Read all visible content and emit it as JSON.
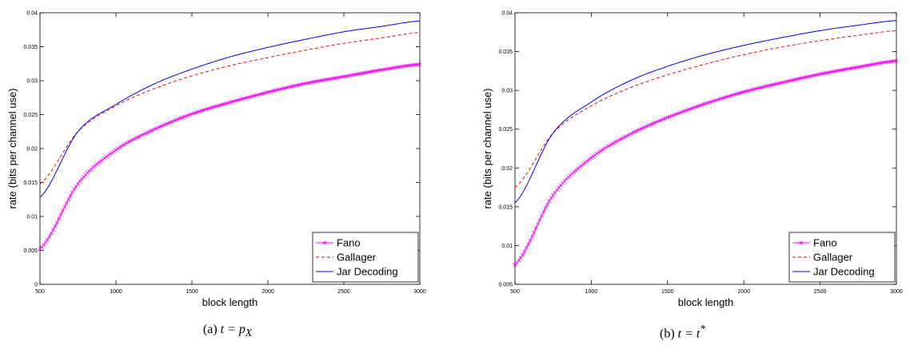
{
  "chart_data": [
    {
      "type": "line",
      "xlabel": "block length",
      "ylabel": "rate (bits per channel use)",
      "xlim": [
        500,
        3000
      ],
      "ylim": [
        0,
        0.04
      ],
      "xticks": [
        "500",
        "1000",
        "1500",
        "2000",
        "2500",
        "3000"
      ],
      "yticks": [
        "0",
        "0.005",
        "0.01",
        "0.015",
        "0.02",
        "0.025",
        "0.03",
        "0.035",
        "0.04"
      ],
      "grid": false,
      "legend_position": "bottom-right",
      "x": [
        500,
        750,
        1000,
        1250,
        1500,
        1750,
        2000,
        2250,
        2500,
        2750,
        3000
      ],
      "series": [
        {
          "name": "Fano",
          "color": "#ff00ff",
          "marker": "x",
          "values": [
            0.0052,
            0.0148,
            0.0198,
            0.0228,
            0.0251,
            0.0268,
            0.0283,
            0.0296,
            0.0306,
            0.0316,
            0.0324
          ]
        },
        {
          "name": "Gallager",
          "color": "#ff0000",
          "dash": "dashed",
          "values": [
            0.0148,
            0.0225,
            0.0263,
            0.0288,
            0.0307,
            0.0322,
            0.0334,
            0.0345,
            0.0355,
            0.0363,
            0.0371
          ]
        },
        {
          "name": "Jar Decoding",
          "color": "#0000ff",
          "dash": "solid",
          "values": [
            0.0128,
            0.0225,
            0.0265,
            0.0295,
            0.0317,
            0.0335,
            0.0349,
            0.0361,
            0.0372,
            0.038,
            0.0388
          ]
        }
      ]
    },
    {
      "type": "line",
      "xlabel": "block length",
      "ylabel": "rate (bits per channel use)",
      "xlim": [
        500,
        3000
      ],
      "ylim": [
        0.005,
        0.04
      ],
      "xticks": [
        "500",
        "1000",
        "1500",
        "2000",
        "2500",
        "3000"
      ],
      "yticks": [
        "0.005",
        "0.01",
        "0.015",
        "0.02",
        "0.025",
        "0.03",
        "0.035",
        "0.04"
      ],
      "grid": false,
      "legend_position": "bottom-right",
      "x": [
        500,
        750,
        1000,
        1250,
        1500,
        1750,
        2000,
        2250,
        2500,
        2750,
        3000
      ],
      "series": [
        {
          "name": "Fano",
          "color": "#ff00ff",
          "marker": "x",
          "values": [
            0.0075,
            0.0165,
            0.0213,
            0.0243,
            0.0265,
            0.0283,
            0.0298,
            0.031,
            0.0321,
            0.033,
            0.0338
          ]
        },
        {
          "name": "Gallager",
          "color": "#ff0000",
          "dash": "dashed",
          "values": [
            0.0175,
            0.0245,
            0.028,
            0.0303,
            0.032,
            0.0334,
            0.0346,
            0.0356,
            0.0364,
            0.0371,
            0.0377
          ]
        },
        {
          "name": "Jar Decoding",
          "color": "#0000ff",
          "dash": "solid",
          "values": [
            0.0155,
            0.0245,
            0.0285,
            0.0312,
            0.0331,
            0.0346,
            0.0358,
            0.0368,
            0.0377,
            0.0384,
            0.039
          ]
        }
      ]
    }
  ],
  "captions": [
    {
      "label": "(a)",
      "math": "t = p",
      "sub": "X"
    },
    {
      "label": "(b)",
      "math": "t = t",
      "sup": "*"
    }
  ]
}
